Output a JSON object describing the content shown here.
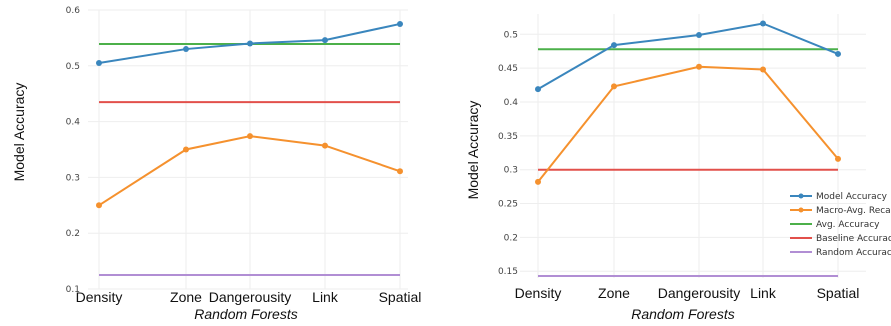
{
  "chart_data": [
    {
      "type": "line",
      "xlabel": "Random Forests",
      "ylabel": "Model Accuracy",
      "categories": [
        "Density",
        "Zone",
        "Dangerousity",
        "Link",
        "Spatial"
      ],
      "ylim": [
        0.1,
        0.6
      ],
      "yticks": [
        "0.1",
        "0.2",
        "0.3",
        "0.4",
        "0.5",
        "0.6"
      ],
      "grid": true,
      "legend": "none",
      "series": [
        {
          "key": "model",
          "color": "#3a86bd",
          "markers": true,
          "values": [
            0.505,
            0.53,
            0.54,
            0.546,
            0.575
          ]
        },
        {
          "key": "macro",
          "color": "#f5912e",
          "markers": true,
          "values": [
            0.25,
            0.35,
            0.374,
            0.357,
            0.311
          ]
        },
        {
          "key": "avg",
          "color": "#4cb04a",
          "markers": false,
          "values": [
            0.539,
            0.539,
            0.539,
            0.539,
            0.539
          ]
        },
        {
          "key": "baseline",
          "color": "#e2504b",
          "markers": false,
          "values": [
            0.435,
            0.435,
            0.435,
            0.435,
            0.435
          ]
        },
        {
          "key": "random",
          "color": "#b18ed4",
          "markers": false,
          "values": [
            0.125,
            0.125,
            0.125,
            0.125,
            0.125
          ]
        }
      ]
    },
    {
      "type": "line",
      "xlabel": "Random Forests",
      "ylabel": "Model Accuracy",
      "categories": [
        "Density",
        "Zone",
        "Dangerousity",
        "Link",
        "Spatial"
      ],
      "ylim": [
        0.14,
        0.53
      ],
      "yticks": [
        "0.15",
        "0.2",
        "0.25",
        "0.3",
        "0.35",
        "0.4",
        "0.45",
        "0.5"
      ],
      "grid": true,
      "legend": "bottom-right",
      "series": [
        {
          "key": "model",
          "name": "Model Accuracy",
          "color": "#3a86bd",
          "markers": true,
          "values": [
            0.419,
            0.484,
            0.499,
            0.516,
            0.471
          ]
        },
        {
          "key": "macro",
          "name": "Macro-Avg. Recal",
          "color": "#f5912e",
          "markers": true,
          "values": [
            0.282,
            0.423,
            0.452,
            0.448,
            0.316
          ]
        },
        {
          "key": "avg",
          "name": "Avg. Accuracy",
          "color": "#4cb04a",
          "markers": false,
          "values": [
            0.478,
            0.478,
            0.478,
            0.478,
            0.478
          ]
        },
        {
          "key": "baseline",
          "name": "Baseline Accuracy",
          "color": "#e2504b",
          "markers": false,
          "values": [
            0.3,
            0.3,
            0.3,
            0.3,
            0.3
          ]
        },
        {
          "key": "random",
          "name": "Random Accuracy",
          "color": "#b18ed4",
          "markers": false,
          "values": [
            0.143,
            0.143,
            0.143,
            0.143,
            0.143
          ]
        }
      ]
    }
  ]
}
